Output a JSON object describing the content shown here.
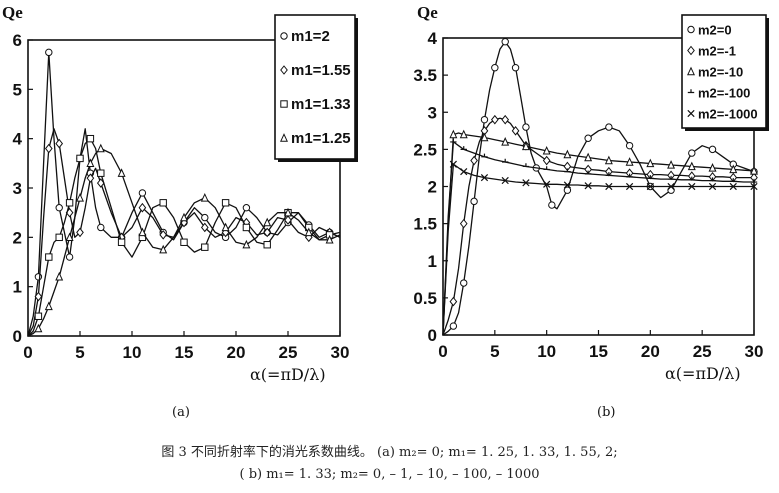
{
  "caption": {
    "line1": "图 3   不同折射率下的消光系数曲线。      (a) m₂= 0; m₁= 1. 25, 1. 33, 1. 55, 2;",
    "line2": "( b) m₁= 1. 33; m₂= 0, – 1, – 10, – 100, – 1000"
  },
  "chart_data": [
    {
      "type": "line",
      "panel_label": "(a)",
      "ylabel": "Qe",
      "xlabel": "α(=πD/λ)",
      "xlim": [
        0,
        30
      ],
      "ylim": [
        0,
        6
      ],
      "xticks": [
        0,
        5,
        10,
        15,
        20,
        25,
        30
      ],
      "yticks": [
        0,
        1,
        2,
        3,
        4,
        5,
        6
      ],
      "legend_position": "top-right",
      "grid": false,
      "series": [
        {
          "name": "m1=2",
          "marker": "circle",
          "x": [
            0,
            0.5,
            1,
            1.5,
            2,
            2.5,
            3,
            3.5,
            4,
            4.5,
            5,
            5.5,
            6,
            6.5,
            7,
            8,
            9,
            10,
            11,
            12,
            13,
            14,
            15,
            16,
            17,
            18,
            19,
            20,
            21,
            22,
            23,
            24,
            25,
            26,
            27,
            28,
            29,
            30
          ],
          "y": [
            0,
            0.4,
            1.2,
            3.5,
            5.75,
            4.0,
            2.6,
            2.1,
            1.6,
            2.4,
            3.6,
            4.2,
            3.3,
            2.6,
            2.2,
            2.0,
            2.0,
            2.5,
            2.9,
            2.5,
            2.1,
            1.95,
            2.3,
            2.6,
            2.4,
            2.1,
            2.0,
            2.2,
            2.6,
            2.4,
            2.1,
            2.05,
            2.3,
            2.5,
            2.25,
            2.0,
            2.1,
            2.0
          ]
        },
        {
          "name": "m1=1.55",
          "marker": "diamond",
          "x": [
            0,
            0.5,
            1,
            1.5,
            2,
            2.5,
            3,
            3.5,
            4,
            4.5,
            5,
            5.5,
            6,
            6.5,
            7,
            8,
            9,
            10,
            11,
            12,
            13,
            14,
            15,
            16,
            17,
            18,
            19,
            20,
            21,
            22,
            23,
            24,
            25,
            26,
            27,
            28,
            29,
            30
          ],
          "y": [
            0,
            0.2,
            0.8,
            2.4,
            3.8,
            4.2,
            3.9,
            3.2,
            2.5,
            2.0,
            2.1,
            2.6,
            3.2,
            3.4,
            3.1,
            2.5,
            2.0,
            2.2,
            2.6,
            2.4,
            2.05,
            2.0,
            2.3,
            2.5,
            2.2,
            2.0,
            2.1,
            2.4,
            2.3,
            2.05,
            2.1,
            2.4,
            2.35,
            2.1,
            2.0,
            2.2,
            2.1,
            2.0
          ]
        },
        {
          "name": "m1=1.33",
          "marker": "square",
          "x": [
            0,
            0.5,
            1,
            1.5,
            2,
            2.5,
            3,
            3.5,
            4,
            4.5,
            5,
            5.5,
            6,
            6.5,
            7,
            8,
            9,
            10,
            11,
            12,
            13,
            14,
            15,
            16,
            17,
            18,
            19,
            20,
            21,
            22,
            23,
            24,
            25,
            26,
            27,
            28,
            29,
            30
          ],
          "y": [
            0,
            0.1,
            0.4,
            1.0,
            1.6,
            1.9,
            2.0,
            2.3,
            2.7,
            3.2,
            3.6,
            3.9,
            4.0,
            3.8,
            3.3,
            2.6,
            1.9,
            1.6,
            2.0,
            2.6,
            2.7,
            2.4,
            1.9,
            1.7,
            1.8,
            2.3,
            2.7,
            2.6,
            2.2,
            1.9,
            1.85,
            2.15,
            2.5,
            2.5,
            2.2,
            1.95,
            2.05,
            2.1
          ]
        },
        {
          "name": "m1=1.25",
          "marker": "triangle",
          "x": [
            0,
            0.5,
            1,
            1.5,
            2,
            2.5,
            3,
            3.5,
            4,
            4.5,
            5,
            5.5,
            6,
            6.5,
            7,
            8,
            9,
            10,
            11,
            12,
            13,
            14,
            15,
            16,
            17,
            18,
            19,
            20,
            21,
            22,
            23,
            24,
            25,
            26,
            27,
            28,
            29,
            30
          ],
          "y": [
            0,
            0.05,
            0.15,
            0.35,
            0.6,
            0.9,
            1.2,
            1.6,
            2.0,
            2.4,
            2.8,
            3.2,
            3.5,
            3.7,
            3.8,
            3.7,
            3.3,
            2.7,
            2.1,
            1.8,
            1.75,
            2.0,
            2.4,
            2.7,
            2.8,
            2.6,
            2.2,
            1.9,
            1.85,
            2.0,
            2.3,
            2.5,
            2.5,
            2.35,
            2.1,
            1.95,
            1.95,
            2.05
          ]
        }
      ]
    },
    {
      "type": "line",
      "panel_label": "(b)",
      "ylabel": "Qe",
      "xlabel": "α(=πD/λ)",
      "xlim": [
        0,
        30
      ],
      "ylim": [
        0,
        4
      ],
      "xticks": [
        0,
        5,
        10,
        15,
        20,
        25,
        30
      ],
      "yticks": [
        0,
        0.5,
        1,
        1.5,
        2,
        2.5,
        3,
        3.5,
        4
      ],
      "legend_position": "top-right",
      "grid": false,
      "series": [
        {
          "name": "m2=0",
          "marker": "circle",
          "x": [
            0,
            0.5,
            1,
            1.5,
            2,
            2.5,
            3,
            3.5,
            4,
            4.5,
            5,
            5.5,
            6,
            6.5,
            7,
            7.5,
            8,
            8.5,
            9,
            10,
            10.5,
            11,
            12,
            13,
            14,
            15,
            16,
            17,
            18,
            19,
            20,
            21,
            22,
            23,
            24,
            25,
            26,
            27,
            28,
            29,
            30
          ],
          "y": [
            0,
            0.05,
            0.12,
            0.3,
            0.7,
            1.2,
            1.8,
            2.4,
            2.9,
            3.3,
            3.6,
            3.85,
            3.95,
            3.85,
            3.6,
            3.2,
            2.8,
            2.45,
            2.25,
            2.0,
            1.75,
            1.7,
            1.95,
            2.4,
            2.65,
            2.75,
            2.8,
            2.75,
            2.55,
            2.3,
            2.0,
            1.85,
            1.95,
            2.2,
            2.45,
            2.55,
            2.5,
            2.4,
            2.3,
            2.25,
            2.2
          ]
        },
        {
          "name": "m2=-1",
          "marker": "diamond",
          "x": [
            0,
            0.5,
            1,
            1.5,
            2,
            2.5,
            3,
            3.5,
            4,
            4.5,
            5,
            5.5,
            6,
            6.5,
            7,
            7.5,
            8,
            9,
            10,
            11,
            12,
            13,
            14,
            15,
            16,
            17,
            18,
            19,
            20,
            21,
            22,
            23,
            24,
            25,
            26,
            27,
            28,
            29,
            30
          ],
          "y": [
            0,
            0.2,
            0.45,
            0.9,
            1.5,
            2.0,
            2.35,
            2.6,
            2.75,
            2.85,
            2.9,
            2.92,
            2.9,
            2.85,
            2.75,
            2.65,
            2.55,
            2.45,
            2.35,
            2.3,
            2.27,
            2.25,
            2.23,
            2.22,
            2.2,
            2.19,
            2.18,
            2.17,
            2.16,
            2.16,
            2.15,
            2.15,
            2.14,
            2.14,
            2.13,
            2.13,
            2.12,
            2.12,
            2.12
          ]
        },
        {
          "name": "m2=-10",
          "marker": "triangle",
          "x": [
            0,
            0.5,
            1,
            1.5,
            2,
            3,
            4,
            5,
            6,
            7,
            8,
            9,
            10,
            11,
            12,
            13,
            14,
            15,
            16,
            17,
            18,
            19,
            20,
            21,
            22,
            23,
            24,
            25,
            26,
            27,
            28,
            29,
            30
          ],
          "y": [
            0,
            1.5,
            2.7,
            2.72,
            2.7,
            2.68,
            2.66,
            2.63,
            2.6,
            2.57,
            2.54,
            2.51,
            2.48,
            2.45,
            2.43,
            2.41,
            2.39,
            2.37,
            2.35,
            2.34,
            2.33,
            2.32,
            2.31,
            2.3,
            2.29,
            2.28,
            2.27,
            2.26,
            2.25,
            2.24,
            2.23,
            2.22,
            2.21
          ]
        },
        {
          "name": "m2=-100",
          "marker": "tick",
          "x": [
            0,
            0.5,
            1,
            1.5,
            2,
            3,
            4,
            5,
            6,
            7,
            8,
            9,
            10,
            11,
            12,
            13,
            14,
            15,
            16,
            17,
            18,
            19,
            20,
            21,
            22,
            23,
            24,
            25,
            26,
            27,
            28,
            29,
            30
          ],
          "y": [
            0,
            1.6,
            2.6,
            2.55,
            2.5,
            2.45,
            2.4,
            2.36,
            2.33,
            2.3,
            2.27,
            2.25,
            2.23,
            2.21,
            2.2,
            2.18,
            2.17,
            2.16,
            2.15,
            2.14,
            2.13,
            2.12,
            2.11,
            2.1,
            2.1,
            2.09,
            2.09,
            2.08,
            2.08,
            2.07,
            2.07,
            2.06,
            2.06
          ]
        },
        {
          "name": "m2=-1000",
          "marker": "cross",
          "x": [
            0,
            0.5,
            1,
            1.5,
            2,
            3,
            4,
            5,
            6,
            7,
            8,
            9,
            10,
            11,
            12,
            13,
            14,
            15,
            16,
            17,
            18,
            19,
            20,
            21,
            22,
            23,
            24,
            25,
            26,
            27,
            28,
            29,
            30
          ],
          "y": [
            0,
            1.4,
            2.3,
            2.25,
            2.2,
            2.15,
            2.12,
            2.1,
            2.08,
            2.06,
            2.05,
            2.04,
            2.03,
            2.03,
            2.02,
            2.02,
            2.01,
            2.01,
            2.0,
            2.0,
            2.0,
            2.0,
            2.0,
            2.0,
            2.0,
            2.0,
            2.0,
            2.0,
            2.0,
            2.0,
            2.0,
            2.0,
            2.0
          ]
        }
      ]
    }
  ]
}
